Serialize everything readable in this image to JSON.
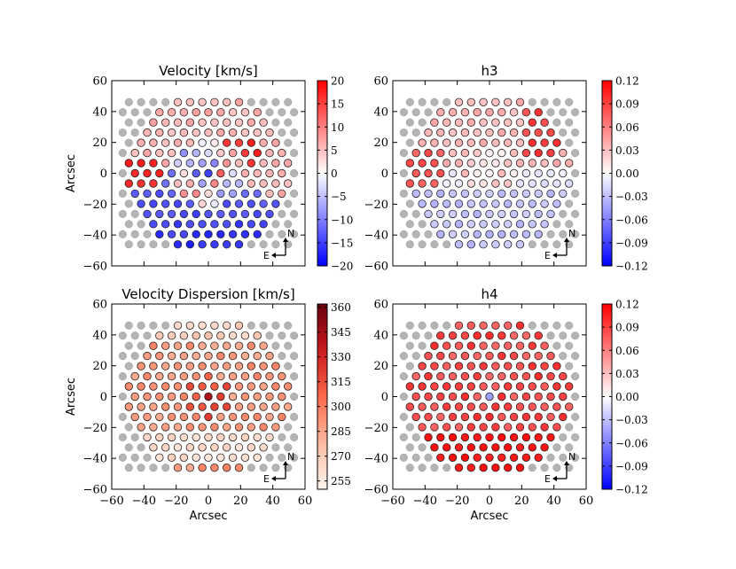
{
  "chart_data": [
    {
      "type": "heatmap",
      "title": "Velocity [km/s]",
      "xlabel": "",
      "ylabel": "Arcsec",
      "xlim": [
        -60,
        60
      ],
      "ylim": [
        -60,
        60
      ],
      "xticks": [
        "-60",
        "-40",
        "-20",
        "0",
        "20",
        "40",
        "60"
      ],
      "yticks": [
        "60",
        "40",
        "20",
        "0",
        "−20",
        "−40",
        "−60"
      ],
      "xticklabels_shown": false,
      "colormap": "bwr",
      "clim": [
        -20,
        20
      ],
      "colorbar_ticks": [
        "20",
        "15",
        "10",
        "5",
        "0",
        "−5",
        "−10",
        "−15",
        "−20"
      ],
      "compass": {
        "north": "N",
        "east": "E"
      },
      "pattern": "velocity"
    },
    {
      "type": "heatmap",
      "title": "h3",
      "xlabel": "",
      "ylabel": "",
      "xlim": [
        -60,
        60
      ],
      "ylim": [
        -60,
        60
      ],
      "xticks": [
        "-60",
        "-40",
        "-20",
        "0",
        "20",
        "40",
        "60"
      ],
      "yticks": [
        "60",
        "40",
        "20",
        "0",
        "−20",
        "−40",
        "−60"
      ],
      "xticklabels_shown": false,
      "colormap": "bwr",
      "clim": [
        -0.12,
        0.12
      ],
      "colorbar_ticks": [
        "0.12",
        "0.09",
        "0.06",
        "0.03",
        "0.00",
        "−0.03",
        "−0.06",
        "−0.09",
        "−0.12"
      ],
      "compass": {
        "north": "N",
        "east": "E"
      },
      "pattern": "h3"
    },
    {
      "type": "heatmap",
      "title": "Velocity Dispersion [km/s]",
      "xlabel": "Arcsec",
      "ylabel": "Arcsec",
      "xlim": [
        -60,
        60
      ],
      "ylim": [
        -60,
        60
      ],
      "xticks": [
        "−60",
        "−40",
        "−20",
        "0",
        "20",
        "40",
        "60"
      ],
      "yticks": [
        "60",
        "40",
        "20",
        "0",
        "−20",
        "−40",
        "−60"
      ],
      "xticklabels_shown": true,
      "colormap": "Reds",
      "clim": [
        250,
        362
      ],
      "colorbar_ticks": [
        "360",
        "345",
        "330",
        "315",
        "300",
        "285",
        "270",
        "255"
      ],
      "compass": {
        "north": "N",
        "east": "E"
      },
      "pattern": "dispersion"
    },
    {
      "type": "heatmap",
      "title": "h4",
      "xlabel": "Arcsec",
      "ylabel": "",
      "xlim": [
        -60,
        60
      ],
      "ylim": [
        -60,
        60
      ],
      "xticks": [
        "−60",
        "−40",
        "−20",
        "0",
        "20",
        "40",
        "60"
      ],
      "yticks": [
        "60",
        "40",
        "20",
        "0",
        "−20",
        "−40",
        "−60"
      ],
      "xticklabels_shown": true,
      "colormap": "bwr",
      "clim": [
        -0.12,
        0.12
      ],
      "colorbar_ticks": [
        "0.12",
        "0.09",
        "0.06",
        "0.03",
        "0.00",
        "−0.03",
        "−0.06",
        "−0.09",
        "−0.12"
      ],
      "compass": {
        "north": "N",
        "east": "E"
      },
      "pattern": "h4"
    }
  ],
  "colors": {
    "sky_fiber": "#b4b4b4",
    "fiber_edge": "#222222",
    "axis": "#000000"
  }
}
